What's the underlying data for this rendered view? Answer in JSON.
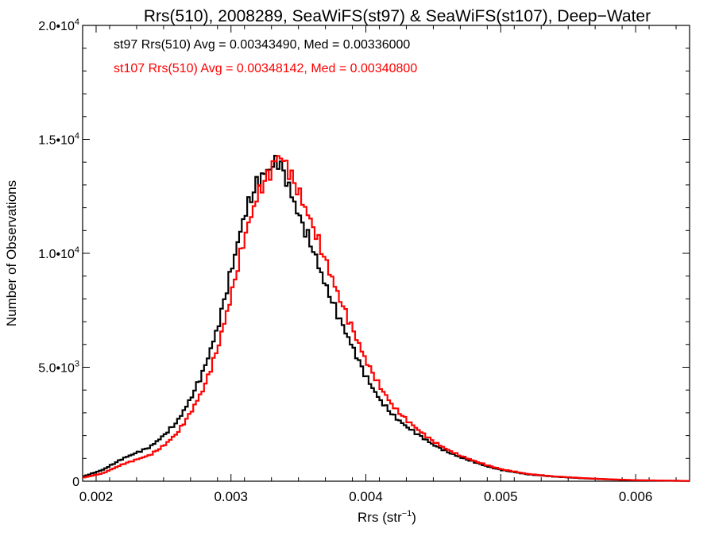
{
  "chart_data": {
    "type": "line",
    "title": "Rrs(510), 2008289, SeaWiFS(st97) & SeaWiFS(st107), Deep−Water",
    "xlabel": "Rrs (str",
    "xlabel_sup": "−1",
    "xlabel_end": ")",
    "ylabel": "Number of Observations",
    "xlim": [
      0.0019,
      0.0064
    ],
    "ylim": [
      0,
      20000
    ],
    "x_ticks": [
      {
        "value": 0.002,
        "label": "0.002"
      },
      {
        "value": 0.003,
        "label": "0.003"
      },
      {
        "value": 0.004,
        "label": "0.004"
      },
      {
        "value": 0.005,
        "label": "0.005"
      },
      {
        "value": 0.006,
        "label": "0.006"
      }
    ],
    "y_ticks": [
      {
        "value": 0,
        "base": "0",
        "exp": ""
      },
      {
        "value": 5000,
        "base": "5.0•10",
        "exp": "3"
      },
      {
        "value": 10000,
        "base": "1.0•10",
        "exp": "4"
      },
      {
        "value": 15000,
        "base": "1.5•10",
        "exp": "4"
      },
      {
        "value": 20000,
        "base": "2.0•10",
        "exp": "4"
      }
    ],
    "grid": false,
    "step": "histogram",
    "series": [
      {
        "name": "st97",
        "color": "#000000",
        "annotation": "st97 Rrs(510) Avg = 0.00343490, Med = 0.00336000",
        "x": [
          0.0019,
          0.00205,
          0.0022,
          0.0024,
          0.0025,
          0.0026,
          0.0027,
          0.0028,
          0.0029,
          0.003,
          0.0031,
          0.0032,
          0.0033,
          0.00335,
          0.0034,
          0.0035,
          0.0036,
          0.0037,
          0.0038,
          0.0039,
          0.004,
          0.0041,
          0.0042,
          0.0043,
          0.0044,
          0.0045,
          0.0046,
          0.0047,
          0.0048,
          0.0049,
          0.005,
          0.0052,
          0.0054,
          0.0056,
          0.0058,
          0.006,
          0.0064
        ],
        "y": [
          200,
          500,
          1000,
          1500,
          2000,
          2600,
          3600,
          4900,
          6700,
          9200,
          11700,
          13200,
          13800,
          14100,
          13400,
          11700,
          10300,
          8600,
          7200,
          5900,
          4600,
          3600,
          2900,
          2400,
          2000,
          1600,
          1300,
          1050,
          850,
          650,
          500,
          300,
          200,
          130,
          80,
          40,
          10
        ]
      },
      {
        "name": "st107",
        "color": "#ff0000",
        "annotation": "st107 Rrs(510) Avg = 0.00348142, Med = 0.00340800",
        "x": [
          0.0019,
          0.00205,
          0.0022,
          0.0024,
          0.0025,
          0.0026,
          0.0027,
          0.0028,
          0.0029,
          0.003,
          0.0031,
          0.0032,
          0.0033,
          0.00335,
          0.0034,
          0.0035,
          0.0036,
          0.0037,
          0.0038,
          0.0039,
          0.004,
          0.0041,
          0.0042,
          0.0043,
          0.0044,
          0.0045,
          0.0046,
          0.0047,
          0.0048,
          0.0049,
          0.005,
          0.0052,
          0.0054,
          0.0056,
          0.0058,
          0.006,
          0.0064
        ],
        "y": [
          150,
          350,
          750,
          1150,
          1550,
          2100,
          3000,
          4100,
          5800,
          8100,
          10700,
          12600,
          13700,
          14300,
          14000,
          12700,
          11300,
          9700,
          8100,
          6700,
          5300,
          4200,
          3300,
          2700,
          2200,
          1750,
          1400,
          1120,
          900,
          700,
          530,
          320,
          210,
          140,
          85,
          45,
          12
        ]
      }
    ]
  }
}
